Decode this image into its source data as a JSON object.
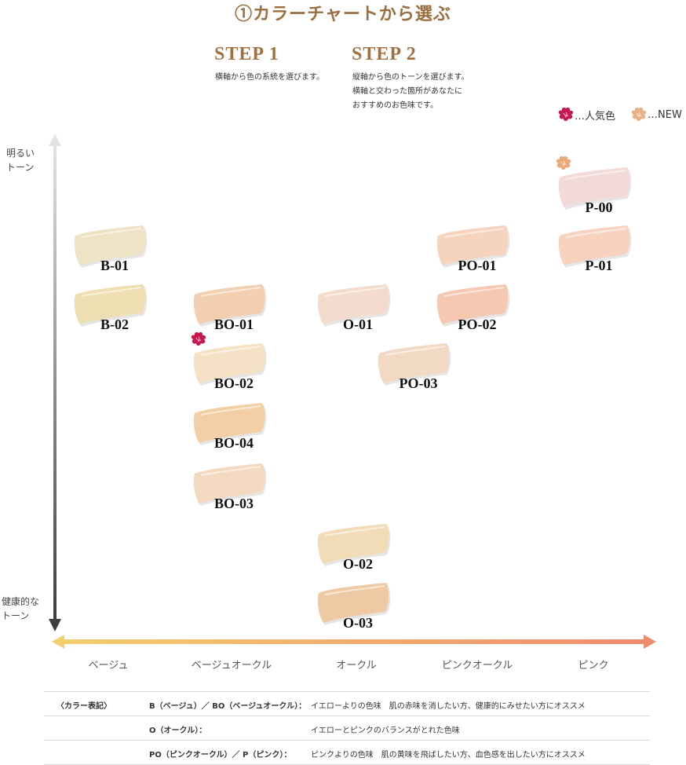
{
  "title": "①カラーチャートから選ぶ",
  "steps": [
    {
      "heading": "STEP 1",
      "text": "横軸から色の系統を選びます。"
    },
    {
      "heading": "STEP 2",
      "text": "縦軸から色のトーンを選びます。\n横軸と交わった箇所があなたに\nおすすめのお色味です。"
    }
  ],
  "legend": {
    "popular": "…人気色",
    "new": "…NEW",
    "popular_color": "#c8194e",
    "new_color": "#e9a97a"
  },
  "vertical_axis": {
    "top": "明るい\nトーン",
    "bottom": "健康的な\nトーン"
  },
  "categories": [
    "ベージュ",
    "ベージュオークル",
    "オークル",
    "ピンクオークル",
    "ピンク"
  ],
  "shades": [
    {
      "code": "B-01",
      "color": "#efe3c5",
      "badge": ""
    },
    {
      "code": "B-02",
      "color": "#eddfb2",
      "badge": ""
    },
    {
      "code": "BO-01",
      "color": "#f2cfb0",
      "badge": ""
    },
    {
      "code": "BO-02",
      "color": "#f4e1c6",
      "badge": "popular"
    },
    {
      "code": "BO-04",
      "color": "#f3cfa5",
      "badge": ""
    },
    {
      "code": "BO-03",
      "color": "#f2d9c0",
      "badge": ""
    },
    {
      "code": "O-01",
      "color": "#f3dccd",
      "badge": ""
    },
    {
      "code": "O-02",
      "color": "#f2dcb7",
      "badge": ""
    },
    {
      "code": "O-03",
      "color": "#efc9a4",
      "badge": ""
    },
    {
      "code": "PO-01",
      "color": "#f6d3bd",
      "badge": ""
    },
    {
      "code": "PO-02",
      "color": "#f4c8b1",
      "badge": ""
    },
    {
      "code": "PO-03",
      "color": "#f2d9c3",
      "badge": ""
    },
    {
      "code": "P-00",
      "color": "#f1dad8",
      "badge": "new"
    },
    {
      "code": "P-01",
      "color": "#f6d2bf",
      "badge": ""
    }
  ],
  "notes": {
    "heading": "〈カラー表記〉",
    "rows": [
      {
        "key": "B（ベージュ）／ BO（ベージュオークル）：",
        "desc": "イエローよりの色味　肌の赤味を消したい方、健康的にみせたい方にオススメ"
      },
      {
        "key": "O（オークル）：",
        "desc": "イエローとピンクのバランスがとれた色味"
      },
      {
        "key": "PO（ピンクオークル）／ P（ピンク）：",
        "desc": "ピンクよりの色味　肌の黄味を飛ばしたい方、血色感を出したい方にオススメ"
      }
    ]
  }
}
